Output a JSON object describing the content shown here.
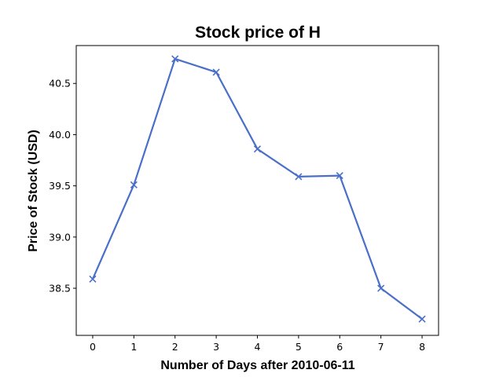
{
  "chart_data": {
    "type": "line",
    "title": "Stock price of H",
    "xlabel": "Number of Days after 2010-06-11",
    "ylabel": "Price of Stock (USD)",
    "x": [
      0,
      1,
      2,
      3,
      4,
      5,
      6,
      7,
      8
    ],
    "series": [
      {
        "values": [
          38.59,
          39.51,
          40.74,
          40.61,
          39.86,
          39.59,
          39.6,
          38.5,
          38.2
        ],
        "color": "#4a6fc9",
        "marker": "x"
      }
    ],
    "xticks": [
      "0",
      "1",
      "2",
      "3",
      "4",
      "5",
      "6",
      "7",
      "8"
    ],
    "yticks": [
      "38.5",
      "39.0",
      "39.5",
      "40.0",
      "40.5"
    ],
    "ytick_values": [
      38.5,
      39.0,
      39.5,
      40.0,
      40.5
    ],
    "xlim": [
      -0.4,
      8.4
    ],
    "ylim": [
      38.04,
      40.87
    ],
    "grid": false,
    "legend": false
  }
}
